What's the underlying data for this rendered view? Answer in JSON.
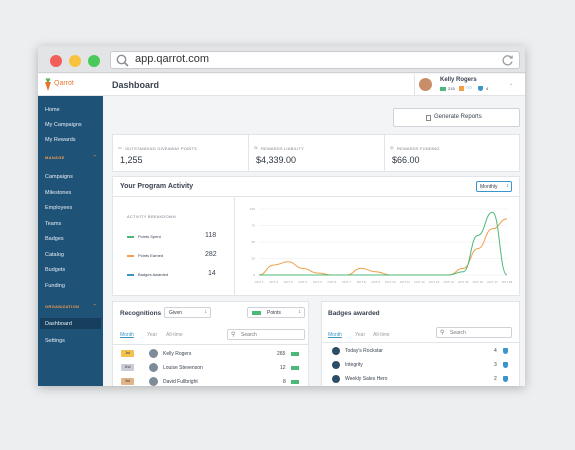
{
  "browser": {
    "url": "app.qarrot.com"
  },
  "brand": {
    "name": "Qarrot"
  },
  "sidebar": {
    "items_top": [
      "Home",
      "My Campaigns",
      "My Rewards"
    ],
    "manage_label": "MANAGE",
    "manage_items": [
      "Campaigns",
      "Milestones",
      "Employees",
      "Teams",
      "Badges",
      "Catalog",
      "Budgets",
      "Funding"
    ],
    "org_label": "ORGANIZATION",
    "org_items": [
      "Dashboard",
      "Settings"
    ]
  },
  "header": {
    "title": "Dashboard",
    "user_name": "Kelly Rogers",
    "stat1": "215",
    "stat2": "4"
  },
  "actions": {
    "generate_reports": "Generate Reports"
  },
  "stats": [
    {
      "label": "OUTSTANDING GIVEAWAY POINTS",
      "value": "1,255"
    },
    {
      "label": "REWARDS LIABILITY",
      "value": "$4,339.00"
    },
    {
      "label": "REWARDS FUNDING",
      "value": "$66.00"
    }
  ],
  "activity": {
    "title": "Your Program Activity",
    "period": "Monthly",
    "breakdown_label": "ACTIVITY BREAKDOWN",
    "rows": [
      {
        "label": "Points Spent",
        "value": "118",
        "color": "#4cb97a"
      },
      {
        "label": "Points Earned",
        "value": "282",
        "color": "#f0a04b"
      },
      {
        "label": "Badges Awarded",
        "value": "14",
        "color": "#3a96c8"
      }
    ]
  },
  "chart_data": {
    "type": "line",
    "y_ticks": [
      "100",
      "75",
      "50",
      "25",
      "0"
    ],
    "ylim": [
      0,
      100
    ],
    "x": [
      "OCT 1",
      "OCT 2",
      "OCT 3",
      "OCT 4",
      "OCT 5",
      "OCT 6",
      "OCT 7",
      "OCT 8",
      "OCT 9",
      "OCT 10",
      "OCT 11",
      "OCT 12",
      "OCT 13",
      "OCT 14",
      "OCT 15",
      "OCT 16",
      "OCT 17",
      "OCT 18"
    ],
    "series": [
      {
        "color": "#f0a04b",
        "values": [
          0,
          15,
          20,
          10,
          3,
          0,
          0,
          10,
          5,
          0,
          0,
          0,
          0,
          0,
          10,
          40,
          70,
          85
        ]
      },
      {
        "color": "#4cb97a",
        "values": [
          0,
          0,
          0,
          0,
          0,
          0,
          0,
          0,
          0,
          0,
          0,
          0,
          0,
          0,
          5,
          60,
          95,
          0
        ]
      }
    ]
  },
  "recognitions": {
    "title": "Recognitions",
    "filter": "Given",
    "metric": "Points",
    "tabs": [
      "Month",
      "Year",
      "All-time"
    ],
    "search_placeholder": "Search",
    "rows": [
      {
        "rank": "1st",
        "name": "Kelly Rogers",
        "points": "265",
        "pill_color": "#f2c14e"
      },
      {
        "rank": "2nd",
        "name": "Louise Stevenson",
        "points": "12",
        "pill_color": "#c9ced4"
      },
      {
        "rank": "3rd",
        "name": "David Fullbright",
        "points": "8",
        "pill_color": "#e3b48a"
      }
    ]
  },
  "badges": {
    "title": "Badges awarded",
    "tabs": [
      "Month",
      "Year",
      "All-time"
    ],
    "search_placeholder": "Search",
    "rows": [
      {
        "name": "Today's Rockstar",
        "count": "4"
      },
      {
        "name": "Integrity",
        "count": "3"
      },
      {
        "name": "Weekly Sales Hero",
        "count": "2"
      }
    ]
  }
}
